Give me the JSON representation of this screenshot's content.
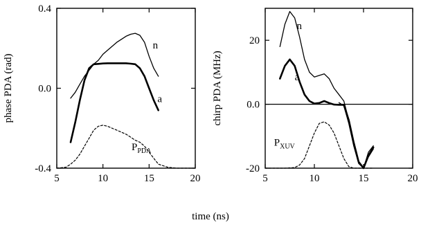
{
  "shared_xlabel": "time (ns)",
  "chart_data": [
    {
      "type": "line",
      "ylabel": "phase PDA (rad)",
      "xlim": [
        5,
        20
      ],
      "ylim": [
        -0.4,
        0.4
      ],
      "xticks": [
        5,
        10,
        15,
        20
      ],
      "yticks": [
        -0.4,
        0.0,
        0.4
      ],
      "xtick_labels": [
        "5",
        "10",
        "15",
        "20"
      ],
      "ytick_labels": [
        "-0.4",
        "0.0",
        "0.4"
      ],
      "annotations": [
        {
          "label": "n",
          "x": 15.4,
          "y": 0.2
        },
        {
          "label": "a",
          "x": 15.9,
          "y": -0.07
        },
        {
          "label": "P",
          "sub": "PDA",
          "x": 13.1,
          "y": -0.31
        }
      ],
      "series": [
        {
          "key": "n",
          "style": "thin",
          "x": [
            6.5,
            7,
            7.5,
            8,
            8.5,
            9,
            9.5,
            10,
            10.5,
            11,
            11.5,
            12,
            12.5,
            13,
            13.5,
            14,
            14.5,
            15,
            15.5,
            16
          ],
          "y": [
            -0.05,
            -0.02,
            0.02,
            0.06,
            0.09,
            0.12,
            0.14,
            0.17,
            0.19,
            0.21,
            0.23,
            0.245,
            0.26,
            0.27,
            0.275,
            0.265,
            0.23,
            0.16,
            0.1,
            0.06
          ]
        },
        {
          "key": "a",
          "style": "thick",
          "x": [
            6.5,
            7,
            7.5,
            8,
            8.5,
            9,
            9.5,
            10,
            10.5,
            11,
            11.5,
            12,
            12.5,
            13,
            13.5,
            14,
            14.5,
            15,
            15.5,
            16
          ],
          "y": [
            -0.27,
            -0.17,
            -0.06,
            0.04,
            0.1,
            0.12,
            0.122,
            0.124,
            0.125,
            0.125,
            0.125,
            0.125,
            0.125,
            0.123,
            0.12,
            0.1,
            0.06,
            0.0,
            -0.06,
            -0.11
          ]
        },
        {
          "key": "P",
          "style": "dashed",
          "x": [
            5,
            6,
            6.5,
            7,
            7.5,
            8,
            8.5,
            9,
            9.5,
            10,
            10.5,
            11,
            11.5,
            12,
            12.5,
            13,
            13.5,
            14,
            14.5,
            15,
            15.5,
            16,
            17,
            18,
            19,
            20
          ],
          "y": [
            -0.4,
            -0.395,
            -0.38,
            -0.36,
            -0.33,
            -0.29,
            -0.25,
            -0.21,
            -0.19,
            -0.185,
            -0.19,
            -0.2,
            -0.21,
            -0.22,
            -0.23,
            -0.245,
            -0.26,
            -0.27,
            -0.29,
            -0.32,
            -0.35,
            -0.38,
            -0.395,
            -0.4,
            -0.4,
            -0.4
          ]
        }
      ]
    },
    {
      "type": "line",
      "ylabel": "chirp PDA (MHz)",
      "xlim": [
        5,
        20
      ],
      "ylim": [
        -20,
        30
      ],
      "xticks": [
        5,
        10,
        15,
        20
      ],
      "yticks": [
        -20,
        0,
        20
      ],
      "xtick_labels": [
        "5",
        "10",
        "15",
        "20"
      ],
      "ytick_labels": [
        "-20",
        "0.0",
        "20"
      ],
      "zero_line": 0,
      "annotations": [
        {
          "label": "n",
          "x": 8.2,
          "y": 23.5
        },
        {
          "label": "a",
          "x": 8.0,
          "y": 7.5
        },
        {
          "label": "P",
          "sub": "XUV",
          "x": 5.9,
          "y": -13
        }
      ],
      "series": [
        {
          "key": "n",
          "style": "thin",
          "x": [
            6.5,
            7,
            7.5,
            8,
            8.5,
            9,
            9.5,
            10,
            10.5,
            11,
            11.5,
            12,
            12.5,
            13,
            13.5,
            14,
            14.5,
            15,
            15.5,
            16
          ],
          "y": [
            18,
            25,
            29,
            27,
            21,
            14,
            10,
            8.5,
            9,
            9.5,
            8,
            5,
            3,
            1,
            -5,
            -12,
            -18,
            -20,
            -15,
            -13
          ]
        },
        {
          "key": "a",
          "style": "thick",
          "x": [
            6.5,
            7,
            7.5,
            8,
            8.5,
            9,
            9.5,
            10,
            10.5,
            11,
            11.5,
            12,
            12.5,
            13,
            13.5,
            14,
            14.5,
            15,
            15.5,
            16
          ],
          "y": [
            8,
            12,
            14,
            12,
            7,
            3,
            1,
            0.2,
            0.4,
            1,
            0.4,
            -0.1,
            -0.2,
            -0.2,
            -5,
            -12,
            -18,
            -20,
            -16,
            -13.5
          ]
        },
        {
          "key": "n2",
          "style": "thin",
          "x": [
            12.5,
            13,
            13.5,
            14,
            14.5,
            15,
            15.5,
            16
          ],
          "y": [
            0.5,
            -0.5,
            -6,
            -13,
            -18.5,
            -20,
            -16.5,
            -14
          ]
        },
        {
          "key": "P",
          "style": "dashed",
          "x": [
            5,
            6,
            7,
            8,
            8.5,
            9,
            9.5,
            10,
            10.5,
            11,
            11.5,
            12,
            12.5,
            13,
            13.5,
            14,
            14.5,
            15,
            15.5,
            16
          ],
          "y": [
            -20,
            -20,
            -20,
            -19.8,
            -19,
            -17,
            -13,
            -9,
            -6,
            -5.5,
            -6.5,
            -9,
            -13,
            -17,
            -19.5,
            -20,
            -20,
            -20,
            -20,
            -20
          ]
        }
      ]
    }
  ]
}
